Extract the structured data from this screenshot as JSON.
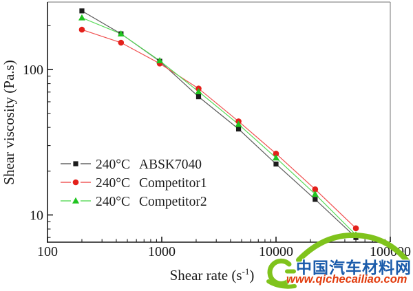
{
  "chart_data": {
    "type": "line",
    "title": "",
    "xlabel": "Shear rate (s⁻¹)",
    "ylabel": "Shear viscosity (Pa.s)",
    "x_scale": "log",
    "y_scale": "log",
    "xlim": [
      100,
      100000
    ],
    "ylim": [
      6.5,
      291
    ],
    "x_ticks_labeled": [
      100,
      1000,
      10000,
      100000
    ],
    "y_ticks_labeled": [
      10,
      100
    ],
    "grid": false,
    "legend_position": "inside-bottom-left",
    "axis_color": "#1a1a1a",
    "border_color": "#8c8c8c",
    "x": [
      200,
      440,
      960,
      2100,
      4700,
      10000,
      22000,
      50000
    ],
    "series": [
      {
        "temp_label": "240°C",
        "name": "ABSK7040",
        "marker": "square",
        "color": "#1c1c1c",
        "line_color": "#5a5a5a",
        "values": [
          253,
          176,
          114,
          65,
          39,
          22.4,
          12.8,
          7.0
        ]
      },
      {
        "temp_label": "240°C",
        "name": "Competitor1",
        "marker": "circle",
        "color": "#e3201b",
        "line_color": "#f05050",
        "values": [
          188,
          153,
          110,
          74,
          44,
          26.4,
          15.0,
          8.1
        ]
      },
      {
        "temp_label": "240°C",
        "name": "Competitor2",
        "marker": "triangle",
        "color": "#21c421",
        "line_color": "#57da57",
        "values": [
          227,
          176,
          115,
          70.5,
          42,
          24.7,
          13.9,
          7.3
        ]
      }
    ]
  },
  "watermark": {
    "site_name": "中国汽车材料网",
    "site_url": "www.qichecailiao.com",
    "name_color": "#1b5cab",
    "url_color": "#e23c0e",
    "logo_color": "#7fc31c"
  }
}
